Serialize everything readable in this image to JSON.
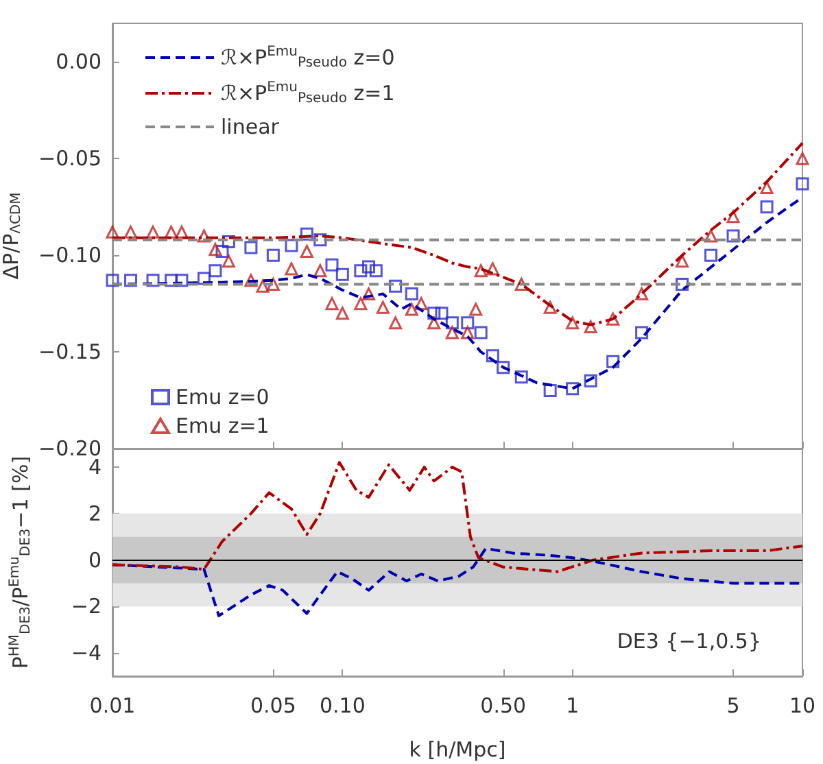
{
  "chart_data": [
    {
      "type": "line",
      "ylabel": "ΔP/P$_{ΛCDM}$",
      "xlim": [
        0.01,
        10
      ],
      "log": "x",
      "xticks": [
        {
          "value": 0.01,
          "label": null
        },
        {
          "value": 0.05,
          "label": null
        },
        {
          "value": 0.1,
          "label": null
        },
        {
          "value": 0.5,
          "label": null
        },
        {
          "value": 1,
          "label": null
        },
        {
          "value": 5,
          "label": null
        },
        {
          "value": 10,
          "label": null
        }
      ],
      "ylim": [
        -0.2,
        0.02
      ],
      "yticks": [
        {
          "value": -0.2,
          "label": "−0.20"
        },
        {
          "value": -0.15,
          "label": "−0.15"
        },
        {
          "value": -0.1,
          "label": "−0.10"
        },
        {
          "value": -0.05,
          "label": "−0.05"
        },
        {
          "value": 0,
          "label": "0.00"
        }
      ],
      "tick_labels": "y",
      "legend": "left",
      "grid": false,
      "series": [
        {
          "name": "ℛ×P$^{Emu}$$_{Pseudo}$ z=0",
          "color": "#0000b0",
          "line_style": "dashed",
          "x": [
            0.01,
            0.03,
            0.05,
            0.06,
            0.07,
            0.08,
            0.1,
            0.12,
            0.15,
            0.18,
            0.2,
            0.25,
            0.3,
            0.35,
            0.4,
            0.5,
            0.7,
            1,
            1.5,
            2,
            3,
            5,
            7,
            10
          ],
          "values": [
            -0.115,
            -0.114,
            -0.113,
            -0.112,
            -0.11,
            -0.112,
            -0.118,
            -0.122,
            -0.12,
            -0.128,
            -0.125,
            -0.133,
            -0.138,
            -0.142,
            -0.15,
            -0.158,
            -0.166,
            -0.169,
            -0.158,
            -0.143,
            -0.118,
            -0.097,
            -0.083,
            -0.07
          ]
        },
        {
          "name": "ℛ×P$^{Emu}$$_{Pseudo}$ z=1",
          "color": "#b00000",
          "line_style": "dashdot",
          "x": [
            0.01,
            0.05,
            0.08,
            0.1,
            0.15,
            0.2,
            0.25,
            0.3,
            0.35,
            0.4,
            0.6,
            0.8,
            1,
            1.2,
            1.5,
            2,
            3,
            4,
            5,
            7,
            10
          ],
          "values": [
            -0.091,
            -0.091,
            -0.09,
            -0.091,
            -0.094,
            -0.096,
            -0.1,
            -0.104,
            -0.106,
            -0.107,
            -0.115,
            -0.126,
            -0.134,
            -0.136,
            -0.133,
            -0.12,
            -0.1,
            -0.087,
            -0.078,
            -0.062,
            -0.042
          ]
        },
        {
          "name": "linear",
          "color": "#888888",
          "line_style": "dashed",
          "x": [
            0.01,
            10
          ],
          "values": [
            -0.092,
            -0.092
          ]
        },
        {
          "color": "#888888",
          "line_style": "dashed",
          "x": [
            0.01,
            10
          ],
          "values": [
            -0.115,
            -0.115
          ]
        },
        {
          "name": "Emu z=0",
          "type": "scatter",
          "marker": "square",
          "color": "#2a2ad0",
          "x": [
            0.01,
            0.012,
            0.015,
            0.018,
            0.02,
            0.025,
            0.028,
            0.03,
            0.032,
            0.04,
            0.05,
            0.06,
            0.07,
            0.08,
            0.09,
            0.1,
            0.12,
            0.13,
            0.14,
            0.17,
            0.2,
            0.25,
            0.27,
            0.3,
            0.35,
            0.4,
            0.45,
            0.5,
            0.6,
            0.8,
            1,
            1.2,
            1.5,
            2,
            3,
            4,
            5,
            7,
            10
          ],
          "values": [
            -0.113,
            -0.113,
            -0.113,
            -0.113,
            -0.113,
            -0.112,
            -0.108,
            -0.098,
            -0.093,
            -0.096,
            -0.1,
            -0.095,
            -0.089,
            -0.092,
            -0.105,
            -0.11,
            -0.108,
            -0.106,
            -0.108,
            -0.116,
            -0.12,
            -0.13,
            -0.13,
            -0.135,
            -0.135,
            -0.14,
            -0.152,
            -0.158,
            -0.163,
            -0.17,
            -0.169,
            -0.165,
            -0.155,
            -0.14,
            -0.115,
            -0.1,
            -0.09,
            -0.075,
            -0.063
          ]
        },
        {
          "name": "Emu z=1",
          "type": "scatter",
          "marker": "triangle",
          "color": "#c02020",
          "x": [
            0.01,
            0.012,
            0.015,
            0.018,
            0.02,
            0.025,
            0.028,
            0.032,
            0.04,
            0.045,
            0.05,
            0.06,
            0.07,
            0.08,
            0.09,
            0.1,
            0.12,
            0.13,
            0.15,
            0.17,
            0.2,
            0.22,
            0.25,
            0.3,
            0.35,
            0.38,
            0.4,
            0.45,
            0.6,
            0.8,
            1,
            1.2,
            1.5,
            2,
            3,
            4,
            5,
            7,
            10
          ],
          "values": [
            -0.088,
            -0.088,
            -0.088,
            -0.088,
            -0.088,
            -0.09,
            -0.097,
            -0.103,
            -0.113,
            -0.116,
            -0.115,
            -0.107,
            -0.098,
            -0.108,
            -0.125,
            -0.13,
            -0.125,
            -0.12,
            -0.127,
            -0.135,
            -0.128,
            -0.125,
            -0.135,
            -0.14,
            -0.14,
            -0.128,
            -0.108,
            -0.107,
            -0.115,
            -0.127,
            -0.135,
            -0.137,
            -0.133,
            -0.12,
            -0.103,
            -0.09,
            -0.08,
            -0.065,
            -0.05
          ]
        }
      ]
    },
    {
      "type": "line",
      "xlabel": "k [h/Mpc]",
      "ylabel": "P$^{HM}$$_{DE3}$/P$^{Emu}$$_{DE3}$−1 [%]",
      "xlim": [
        0.01,
        10
      ],
      "log": "x",
      "xticks": [
        0.01,
        0.05,
        {
          "value": 0.1,
          "label": "0.10"
        },
        {
          "value": 0.5,
          "label": "0.50"
        },
        1,
        5,
        10
      ],
      "ylim": [
        -5,
        4.8
      ],
      "yticks": [
        {
          "value": -4,
          "label": "−4"
        },
        {
          "value": -2,
          "label": "−2"
        },
        0,
        2,
        4
      ],
      "grid": false,
      "bands": [
        {
          "axis": "y",
          "from": -2,
          "to": 2,
          "color": "#e6e6e6"
        },
        {
          "axis": "y",
          "from": -1,
          "to": 1,
          "color": "#c8c8c8"
        }
      ],
      "ref_lines": [
        {
          "axis": "y",
          "value": 0,
          "color": "#000000",
          "line_style": "solid"
        }
      ],
      "annotations": [
        "DE3 {−1,0.5}"
      ],
      "series": [
        {
          "color": "#0000b0",
          "line_style": "dashed",
          "x": [
            0.01,
            0.025,
            0.029,
            0.04,
            0.048,
            0.055,
            0.07,
            0.08,
            0.095,
            0.11,
            0.13,
            0.16,
            0.19,
            0.22,
            0.26,
            0.32,
            0.37,
            0.42,
            0.55,
            0.8,
            1,
            1.3,
            2,
            3,
            5,
            10
          ],
          "values": [
            -0.2,
            -0.4,
            -2.4,
            -1.5,
            -1.1,
            -1.3,
            -2.3,
            -1.5,
            -0.5,
            -0.8,
            -1.3,
            -0.5,
            -0.9,
            -0.6,
            -0.9,
            -0.7,
            -0.3,
            0.5,
            0.3,
            0.2,
            0.1,
            -0.1,
            -0.5,
            -0.8,
            -1,
            -1
          ]
        },
        {
          "color": "#b00000",
          "line_style": "dashdot",
          "x": [
            0.01,
            0.02,
            0.025,
            0.03,
            0.04,
            0.048,
            0.06,
            0.07,
            0.08,
            0.097,
            0.115,
            0.13,
            0.159,
            0.196,
            0.227,
            0.25,
            0.3,
            0.33,
            0.36,
            0.39,
            0.5,
            0.86,
            1.23,
            2,
            4,
            7,
            10
          ],
          "values": [
            -0.2,
            -0.3,
            -0.4,
            0.8,
            2,
            2.9,
            2.2,
            1.1,
            2,
            4.2,
            3,
            2.7,
            4.1,
            3,
            4,
            3.4,
            4,
            3.8,
            1,
            0.1,
            -0.3,
            -0.5,
            0,
            0.3,
            0.4,
            0.4,
            0.6
          ]
        }
      ]
    }
  ]
}
